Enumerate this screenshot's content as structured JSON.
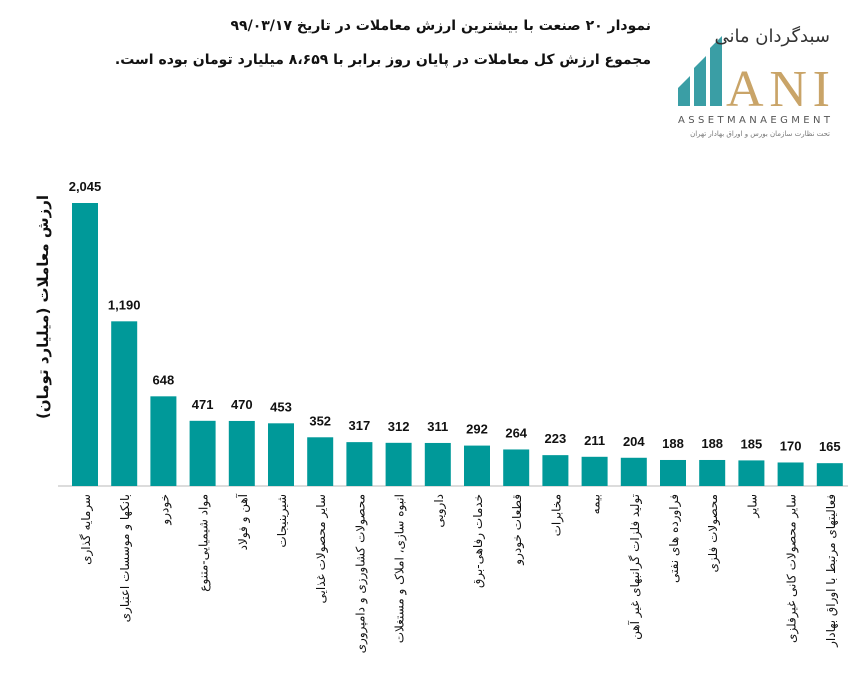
{
  "header": {
    "title_line1": "نمودار ۲۰ صنعت با بیشترین ارزش معاملات در تاریخ ۹۹/۰۳/۱۷",
    "title_line2": "مجموع ارزش  کل معاملات در پایان روز برابر با ۸،۶۵۹ میلیارد تومان بوده است."
  },
  "logo": {
    "name_fa": "سبدگردان مانی",
    "letters": "ANI",
    "tagline_en": "ASSETMANAEGMENT",
    "tagline_fa": "تحت نظارت سازمان بورس و اوراق بهادار تهران",
    "teal": "#3a9ea5",
    "gold": "#c9a468"
  },
  "chart_data": {
    "type": "bar",
    "title": "",
    "xlabel": "",
    "ylabel": "ارزش معاملات (میلیارد تومان)",
    "ylim": [
      0,
      2100
    ],
    "grid": false,
    "bar_color": "#009999",
    "categories": [
      "سرمایه گذاری",
      "بانکها و موسسات اعتباری",
      "خودرو",
      "مواد شیمیایی-متنوع",
      "آهن و فولاد",
      "شیرینیجات",
      "سایر محصولات غذایی",
      "محصولات کشاورزی و دامپروری",
      "انبوه سازی، املاک و مستغلات",
      "دارویی",
      "خدمات رفاهی-برق",
      "قطعات خودرو",
      "مخابرات",
      "بیمه",
      "تولید فلزات گرانبهای غیر آهن",
      "فراورده های نفتی",
      "محصولات فلزی",
      "سایر",
      "سایر محصولات کانی غیرفلزی",
      "فعالیتهای مرتبط با اوراق بهادار"
    ],
    "values": [
      2045,
      1190,
      648,
      471,
      470,
      453,
      352,
      317,
      312,
      311,
      292,
      264,
      223,
      211,
      204,
      188,
      188,
      185,
      170,
      165
    ],
    "data_labels": [
      "2,045",
      "1,190",
      "648",
      "471",
      "470",
      "453",
      "352",
      "317",
      "312",
      "311",
      "292",
      "264",
      "223",
      "211",
      "204",
      "188",
      "188",
      "185",
      "170",
      "165"
    ]
  }
}
